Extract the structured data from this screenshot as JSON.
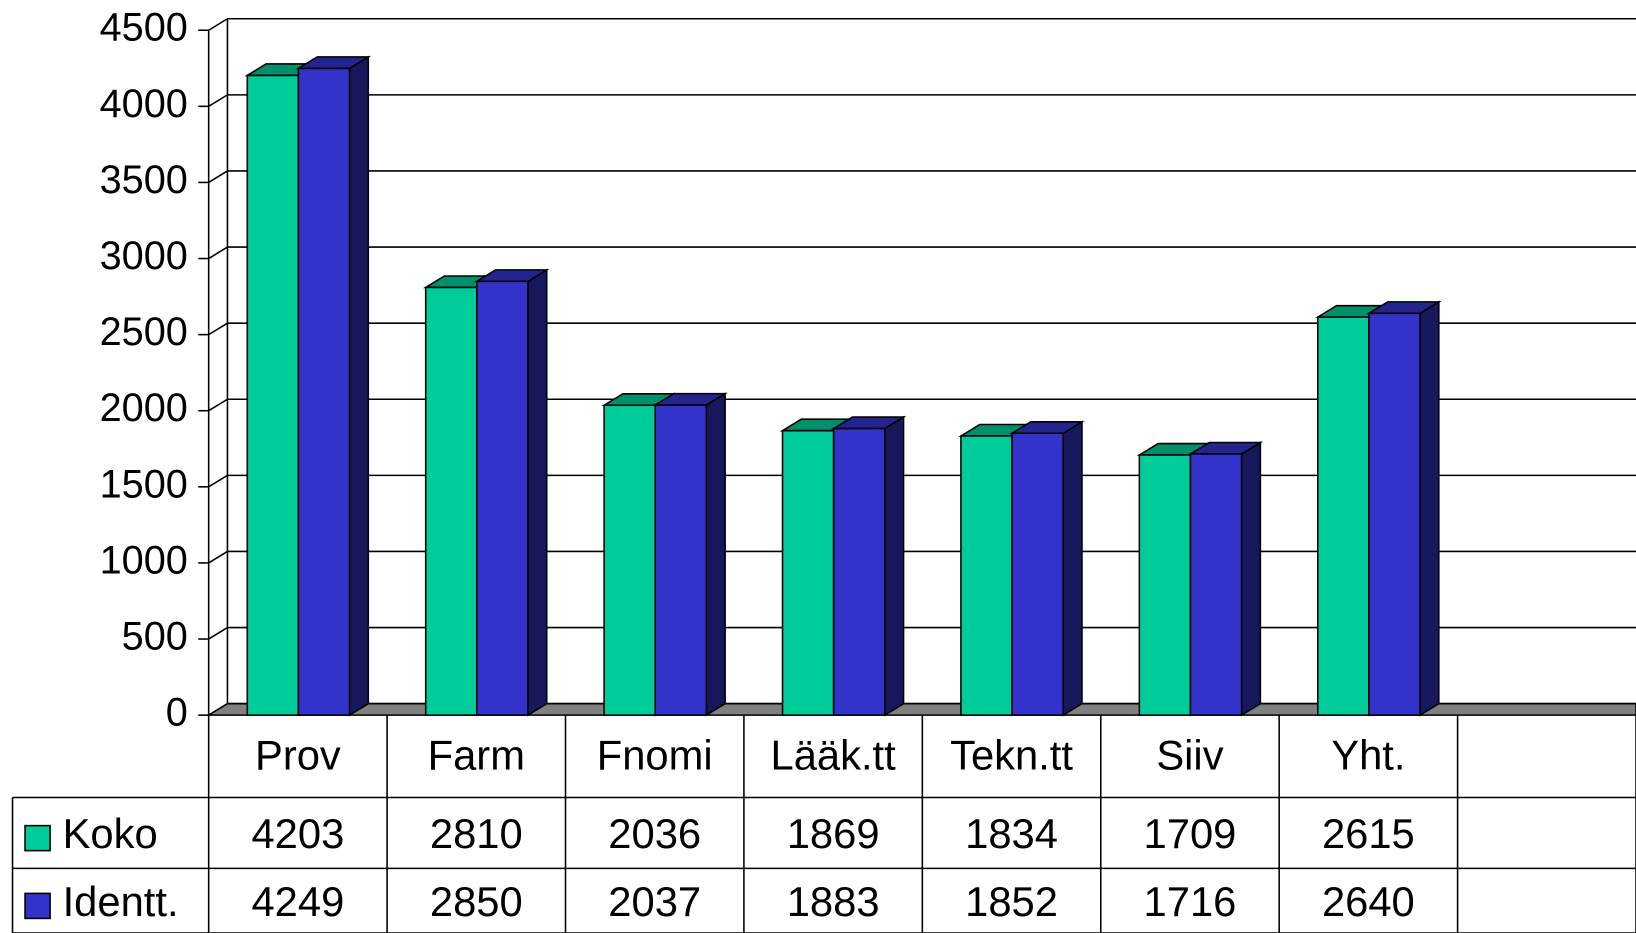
{
  "chart_data": {
    "type": "bar",
    "categories": [
      "Prov",
      "Farm",
      "Fnomi",
      "Lääk.tt",
      "Tekn.tt",
      "Siiv",
      "Yht.",
      null
    ],
    "series": [
      {
        "name": "Koko",
        "color": "#00cc99",
        "values": [
          4203,
          2810,
          2036,
          1869,
          1834,
          1709,
          2615,
          null
        ]
      },
      {
        "name": "Identt.",
        "color": "#3333cc",
        "values": [
          4249,
          2850,
          2037,
          1883,
          1852,
          1716,
          2640,
          null
        ]
      }
    ],
    "ylim": [
      0,
      4500
    ],
    "yticks": [
      0,
      500,
      1000,
      1500,
      2000,
      2500,
      3000,
      3500,
      4000,
      4500
    ],
    "grid": true
  }
}
